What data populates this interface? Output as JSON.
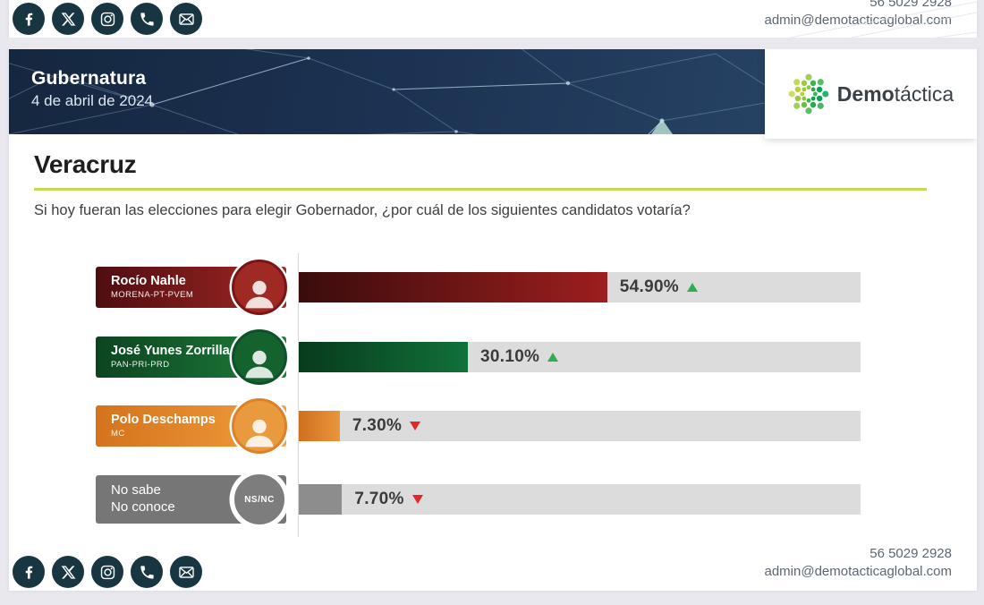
{
  "contact": {
    "phone": "56 5029 2928",
    "email": "admin@demotacticaglobal.com"
  },
  "social": {
    "icons": [
      {
        "name": "facebook"
      },
      {
        "name": "x-twitter"
      },
      {
        "name": "instagram"
      },
      {
        "name": "phone"
      },
      {
        "name": "email"
      }
    ]
  },
  "header": {
    "title": "Gubernatura",
    "date": "4 de abril de 2024",
    "brand_bold": "Demo",
    "brand_light": "táctica"
  },
  "section": {
    "title": "Veracruz",
    "question": "Si hoy fueran las elecciones para elegir Gobernador, ¿por cuál de los siguientes candidatos votaría?",
    "underline_color": "#c6da55"
  },
  "chart_data": {
    "type": "bar",
    "orientation": "horizontal",
    "xlim": [
      0,
      100
    ],
    "grid": false,
    "categories": [
      "Rocío Nahle",
      "José Yunes Zorrilla",
      "Polo Deschamps",
      "No sabe / No conoce"
    ],
    "values": [
      54.9,
      30.1,
      7.3,
      7.7
    ],
    "rows": [
      {
        "name": "Rocío Nahle",
        "party": "MORENA-PT-PVEM",
        "value": 54.9,
        "value_label": "54.90%",
        "trend": "up",
        "label_gradient": [
          "#4e0d10",
          "#a32723"
        ],
        "bar_gradient": [
          "#3a0c0c",
          "#9d1e1e"
        ],
        "avatar": "photo",
        "avatar_bg": "#9e2a23",
        "avatar_ring": "#7c1416"
      },
      {
        "name": "José Yunes Zorrilla",
        "party": "PAN-PRI-PRD",
        "value": 30.1,
        "value_label": "30.10%",
        "trend": "up",
        "label_gradient": [
          "#0c4420",
          "#1e7e3a"
        ],
        "bar_gradient": [
          "#083a1c",
          "#11713a"
        ],
        "avatar": "photo",
        "avatar_bg": "#14622e",
        "avatar_ring": "#0d5226"
      },
      {
        "name": "Polo Deschamps",
        "party": "MC",
        "value": 7.3,
        "value_label": "7.30%",
        "trend": "down",
        "label_gradient": [
          "#d4731c",
          "#f29d3d"
        ],
        "bar_gradient": [
          "#cf6f1e",
          "#e9963c"
        ],
        "avatar": "photo",
        "avatar_bg": "#ea9a3e",
        "avatar_ring": "#dd8026"
      },
      {
        "name": "No sabe",
        "name2": "No conoce",
        "party": "",
        "value": 7.7,
        "value_label": "7.70%",
        "trend": "down",
        "label_gradient": [
          "#767676",
          "#767676"
        ],
        "bar_gradient": [
          "#8d8d8d",
          "#8d8d8d"
        ],
        "avatar": "text",
        "avatar_label": "NS/NC",
        "avatar_bg": "#7d7d7d",
        "avatar_ring": "#ffffff"
      }
    ],
    "trend_colors": {
      "up": "#2fae4e",
      "down": "#e32726"
    },
    "track_color": "#dcdcdc"
  }
}
